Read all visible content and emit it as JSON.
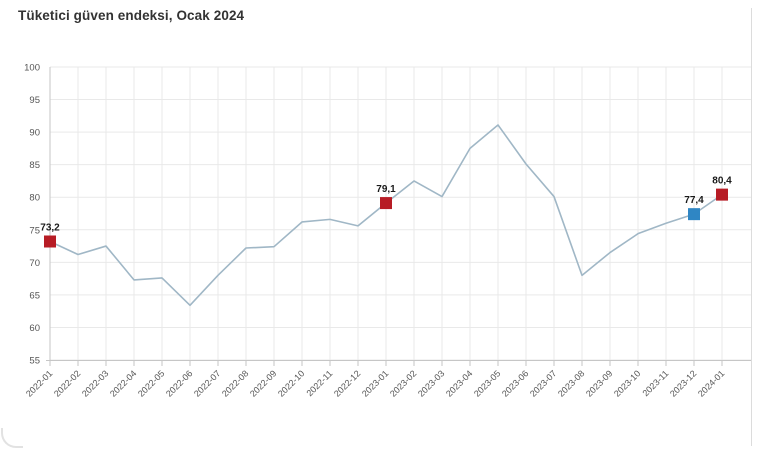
{
  "page": {
    "title": "Tüketici güven endeksi, Ocak 2024"
  },
  "chart_data": {
    "type": "line",
    "title": "Tüketici güven endeksi, Ocak 2024",
    "x": [
      "2022-01",
      "2022-02",
      "2022-03",
      "2022-04",
      "2022-05",
      "2022-06",
      "2022-07",
      "2022-08",
      "2022-09",
      "2022-10",
      "2022-11",
      "2022-12",
      "2023-01",
      "2023-02",
      "2023-03",
      "2023-04",
      "2023-05",
      "2023-06",
      "2023-07",
      "2023-08",
      "2023-09",
      "2023-10",
      "2023-11",
      "2023-12",
      "2024-01"
    ],
    "values": [
      73.2,
      71.2,
      72.5,
      67.3,
      67.6,
      63.4,
      68.0,
      72.2,
      72.4,
      76.2,
      76.6,
      75.6,
      79.1,
      82.5,
      80.1,
      87.5,
      91.1,
      85.1,
      80.1,
      68.0,
      71.5,
      74.4,
      76.0,
      77.4,
      80.4
    ],
    "ylim": [
      55,
      100
    ],
    "ytick_step": 5,
    "grid": true,
    "legend_position": "none",
    "xlabel": "",
    "ylabel": "",
    "labeled_points": [
      {
        "x": "2022-01",
        "value": 73.2,
        "label": "73,2",
        "marker_color": "#b71c25"
      },
      {
        "x": "2023-01",
        "value": 79.1,
        "label": "79,1",
        "marker_color": "#b71c25"
      },
      {
        "x": "2023-12",
        "value": 77.4,
        "label": "77,4",
        "marker_color": "#2f86c4"
      },
      {
        "x": "2024-01",
        "value": 80.4,
        "label": "80,4",
        "marker_color": "#b71c25"
      }
    ],
    "colors": {
      "line": "#a0b7c6",
      "grid": "#e9e9e9",
      "axis": "#c6c6c6",
      "tick_text": "#555555",
      "data_label": "#1a1a1a"
    }
  }
}
